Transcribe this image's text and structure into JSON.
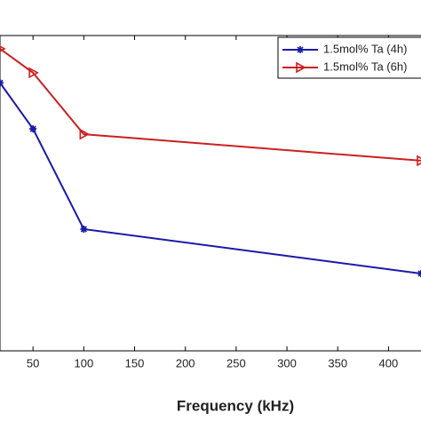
{
  "chart_data": {
    "type": "line",
    "x_label": "Frequency (kHz)",
    "x": [
      17.5,
      50,
      100,
      432
    ],
    "xlim": [
      17.5,
      432
    ],
    "xticks": [
      50,
      100,
      150,
      200,
      250,
      300,
      350,
      400
    ],
    "ylim": [
      0,
      100
    ],
    "legend": "top-right",
    "series": [
      {
        "name": "1.5mol% Ta (4h)",
        "color": "#1a1aa8",
        "marker": "star",
        "values": [
          85,
          70.4,
          38.6,
          24.5
        ]
      },
      {
        "name": "1.5mol% Ta (6h)",
        "color": "#cc2020",
        "marker": "triangle-right",
        "values": [
          95.8,
          88.2,
          68.7,
          60.3
        ]
      }
    ]
  }
}
